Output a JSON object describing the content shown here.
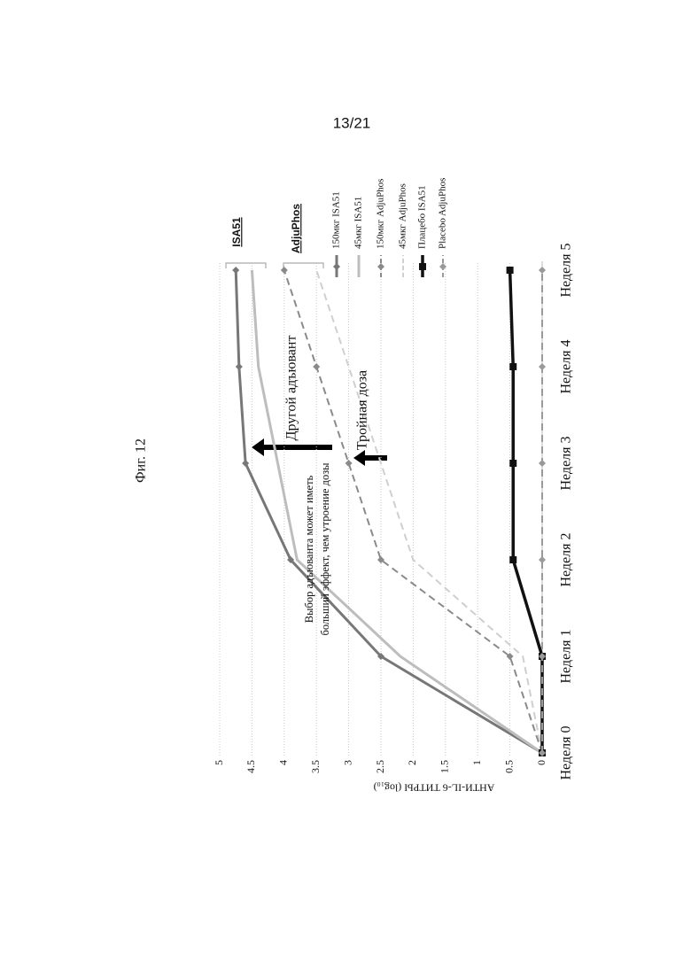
{
  "page": {
    "number": "13/21",
    "figure": "Фиг. 12"
  },
  "chart_data": {
    "type": "line",
    "y_label": "АНТИ-IL-6 ТИТРЫ (log₁₀)",
    "categories": [
      "Неделя 0",
      "Неделя 1",
      "Неделя 2",
      "Неделя 3",
      "Неделя 4",
      "Неделя 5"
    ],
    "series": [
      {
        "name": "150мкг ISA51",
        "color": "#777777",
        "dash": false,
        "marker": "diamond",
        "values": [
          0,
          2.5,
          3.9,
          4.6,
          4.7,
          4.75
        ]
      },
      {
        "name": "45мкг ISA51",
        "color": "#bdbdbd",
        "dash": false,
        "marker": "none",
        "values": [
          0,
          2.2,
          3.8,
          4.1,
          4.4,
          4.5
        ]
      },
      {
        "name": "150мкг AdjuPhos",
        "color": "#8a8a8a",
        "dash": true,
        "marker": "diamond",
        "values": [
          0,
          0.5,
          2.5,
          3.0,
          3.5,
          4.0
        ]
      },
      {
        "name": "45мкг AdjuPhos",
        "color": "#cfcfcf",
        "dash": true,
        "marker": "none",
        "values": [
          0,
          0.3,
          2.0,
          2.5,
          3.0,
          3.5
        ]
      },
      {
        "name": "Плацебо ISA51",
        "color": "#111111",
        "dash": false,
        "marker": "square",
        "values": [
          0,
          0,
          0.45,
          0.45,
          0.45,
          0.5
        ]
      },
      {
        "name": "Placebo AdjuPhos",
        "color": "#9a9a9a",
        "dash": true,
        "marker": "diamond",
        "values": [
          0,
          0,
          0,
          0,
          0,
          0
        ]
      }
    ],
    "ylim": [
      0,
      5
    ],
    "yticks": [
      0,
      0.5,
      1,
      1.5,
      2,
      2.5,
      3,
      3.5,
      4,
      4.5,
      5
    ],
    "grid": true,
    "annotations": {
      "note": [
        "Выбор адъюванта может иметь",
        "больший эффект, чем утроение дозы"
      ],
      "other_adjuvant": "Другой адъювант",
      "triple_dose": "Тройная доза",
      "group_isa51": "ISA51",
      "group_adjuphos": "AdjuPhos"
    }
  }
}
